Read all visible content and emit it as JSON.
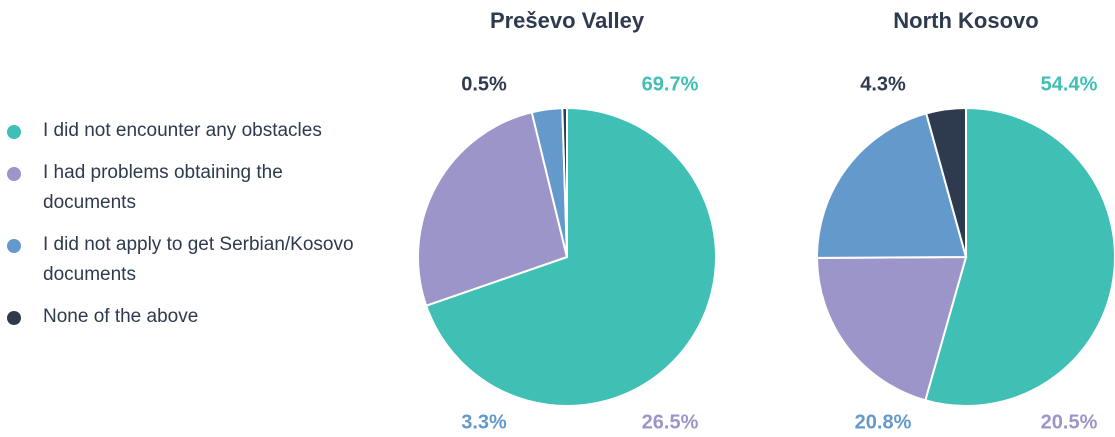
{
  "legend": {
    "categories": [
      "I did not encounter any obstacles",
      "I had problems obtaining the documents",
      "I did not apply to get Serbian/Kosovo documents",
      "None of the above"
    ],
    "colors": [
      "#40bfb5",
      "#9b95c9",
      "#6499cc",
      "#2e3a4d"
    ]
  },
  "chart_data": [
    {
      "type": "pie",
      "title": "Preševo Valley",
      "values": [
        69.7,
        26.5,
        3.3,
        0.5
      ],
      "value_labels": [
        "69.7%",
        "26.5%",
        "3.3%",
        "0.5%"
      ]
    },
    {
      "type": "pie",
      "title": "North Kosovo",
      "values": [
        54.4,
        20.5,
        20.8,
        4.3
      ],
      "value_labels": [
        "54.4%",
        "20.5%",
        "20.8%",
        "4.3%"
      ]
    }
  ]
}
